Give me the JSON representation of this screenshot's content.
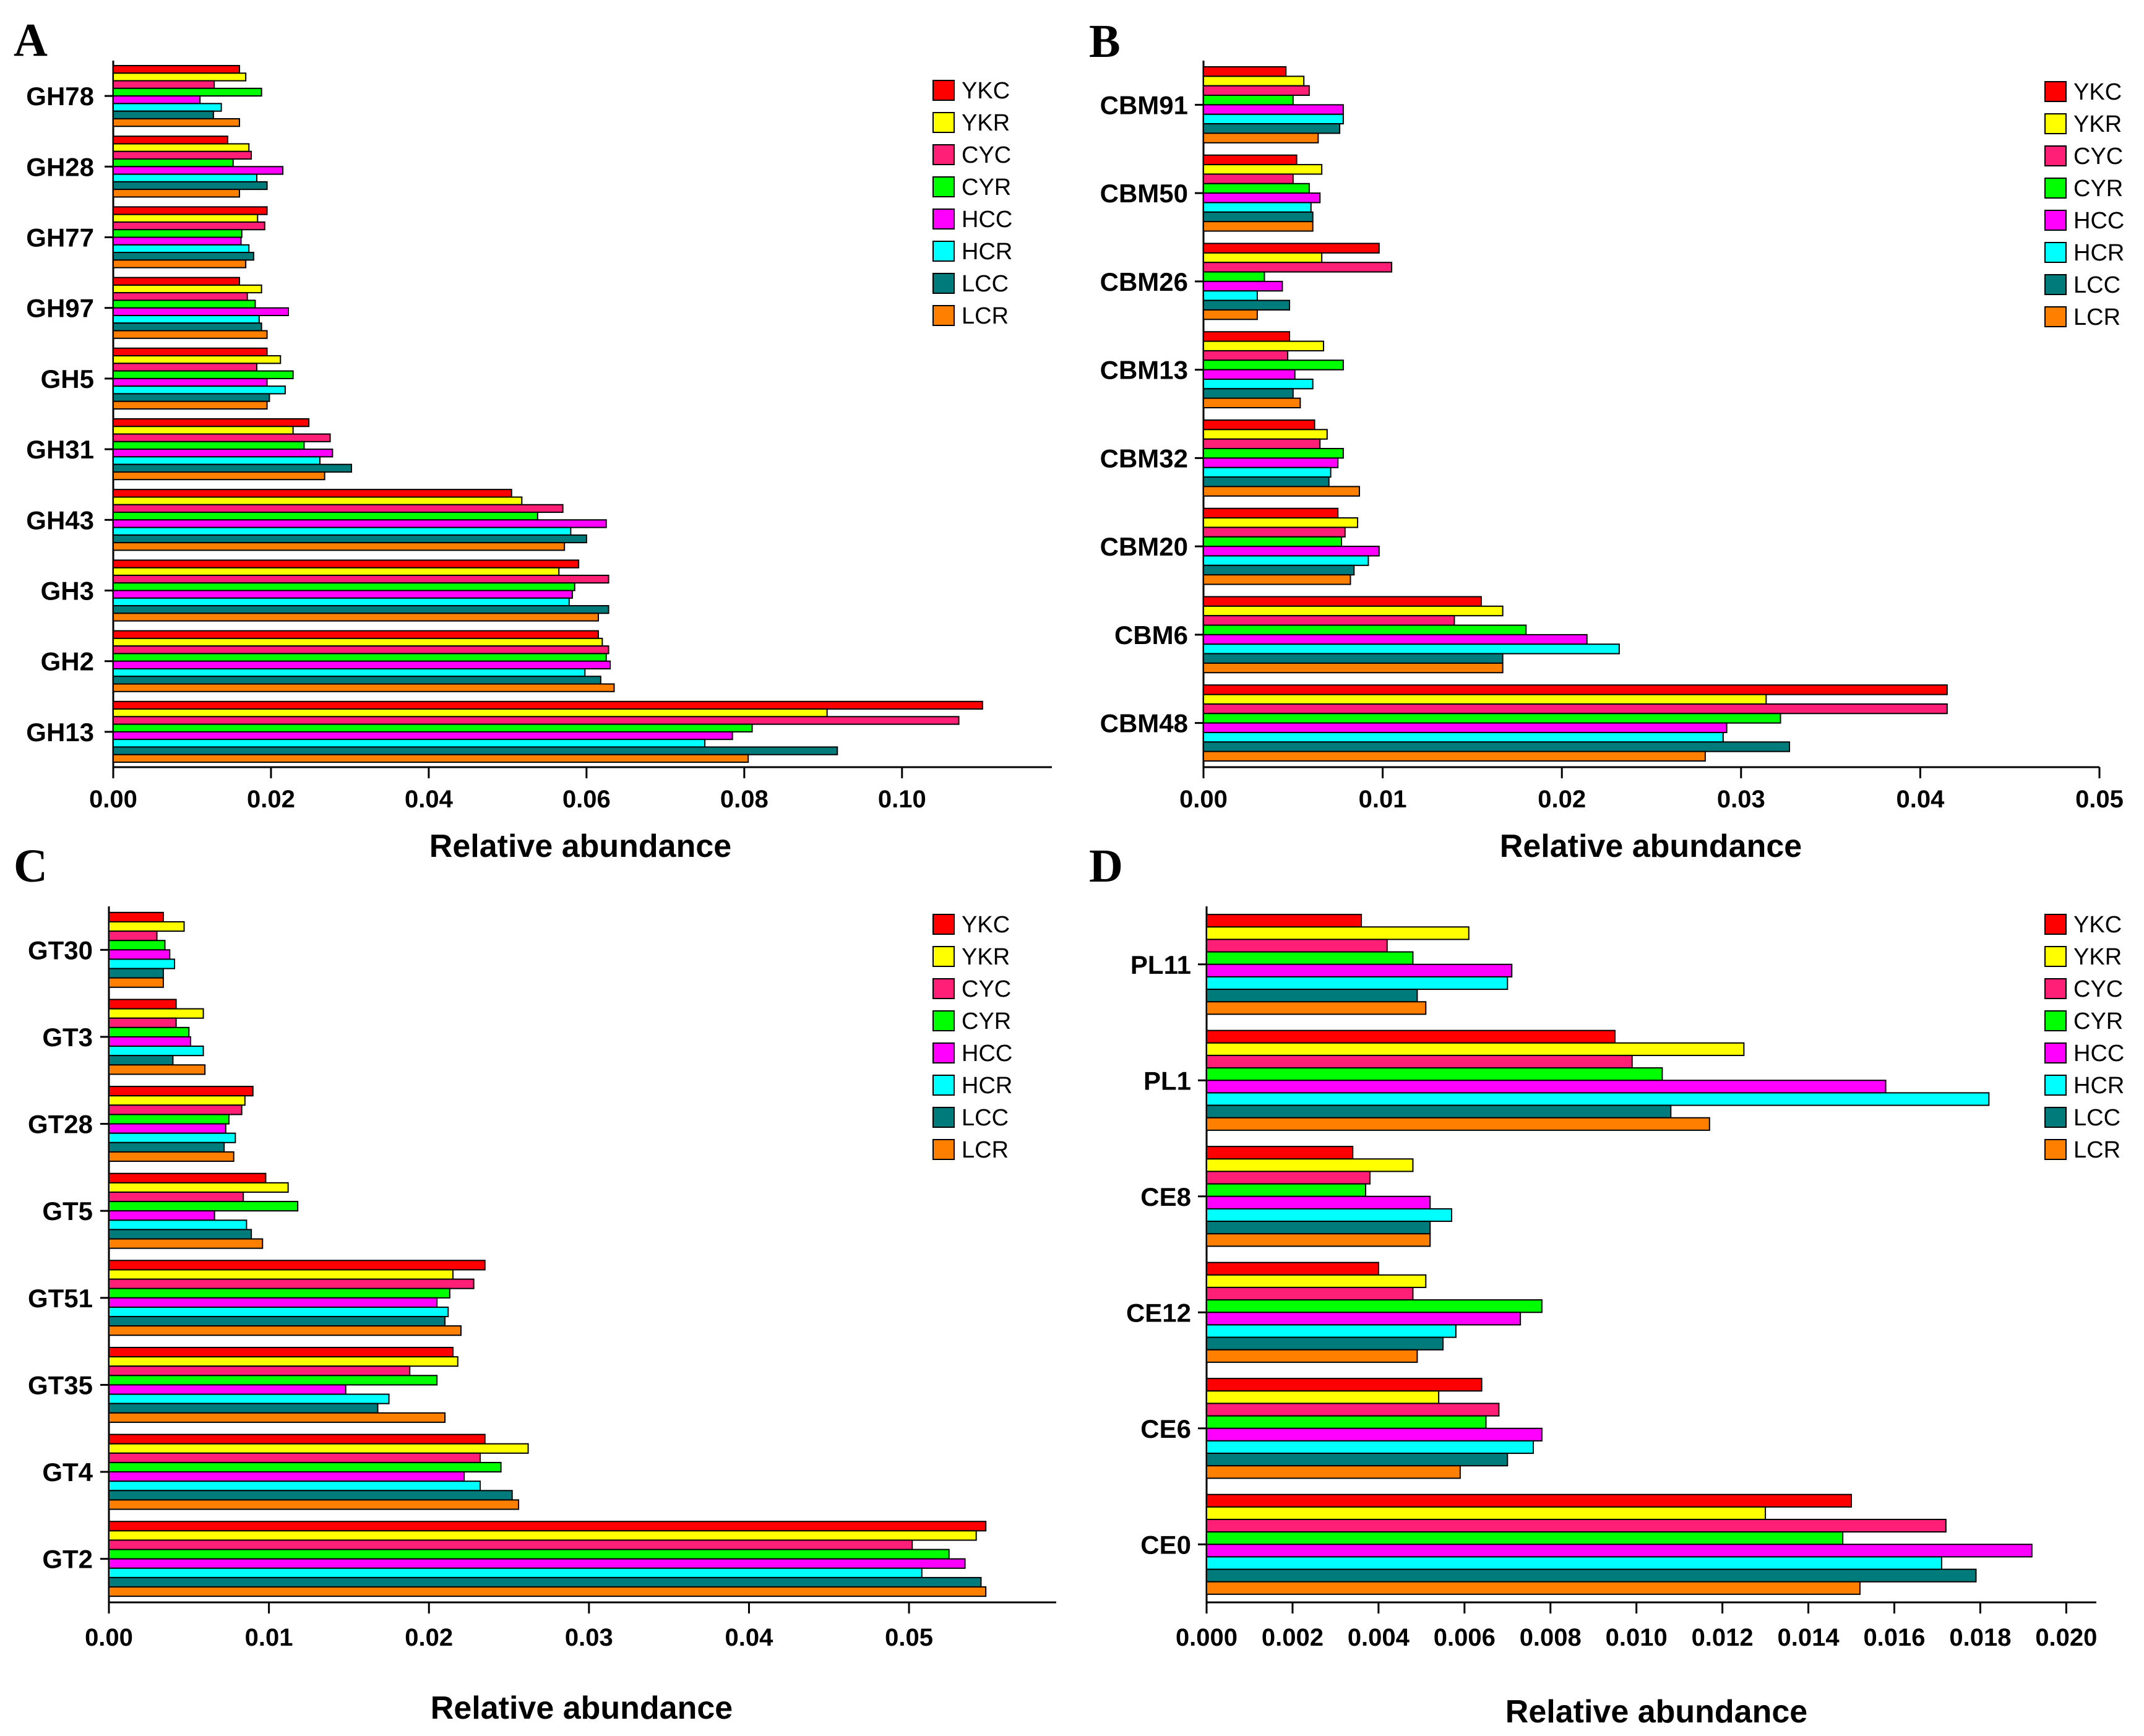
{
  "legend_colors": [
    "#ff0000",
    "#ffff00",
    "#ff1f77",
    "#00ff00",
    "#ff00ff",
    "#00ffff",
    "#007b7b",
    "#ff8000"
  ],
  "chart_data": [
    {
      "panel": "A",
      "type": "bar",
      "orientation": "horizontal",
      "categories": [
        "GH78",
        "GH28",
        "GH77",
        "GH97",
        "GH5",
        "GH31",
        "GH43",
        "GH3",
        "GH2",
        "GH13"
      ],
      "xlabel": "Relative abundance",
      "xlim": [
        0,
        0.119
      ],
      "xticks": [
        0.0,
        0.02,
        0.04,
        0.06,
        0.08,
        0.1
      ],
      "xtick_labels": [
        "0.00",
        "0.02",
        "0.04",
        "0.06",
        "0.08",
        "0.10"
      ],
      "legend_position": "top-right",
      "series": [
        {
          "name": "YKC",
          "values": [
            0.016,
            0.0145,
            0.0195,
            0.016,
            0.0195,
            0.0248,
            0.0505,
            0.059,
            0.0615,
            0.1102
          ]
        },
        {
          "name": "YKR",
          "values": [
            0.0168,
            0.0172,
            0.0183,
            0.0188,
            0.0212,
            0.0228,
            0.0518,
            0.0565,
            0.062,
            0.0905
          ]
        },
        {
          "name": "CYC",
          "values": [
            0.0128,
            0.0175,
            0.0192,
            0.017,
            0.0182,
            0.0275,
            0.057,
            0.0628,
            0.0628,
            0.1072
          ]
        },
        {
          "name": "CYR",
          "values": [
            0.0188,
            0.0152,
            0.0163,
            0.018,
            0.0228,
            0.0242,
            0.0538,
            0.0585,
            0.0625,
            0.081
          ]
        },
        {
          "name": "HCC",
          "values": [
            0.011,
            0.0215,
            0.0162,
            0.0222,
            0.0195,
            0.0278,
            0.0625,
            0.0582,
            0.063,
            0.0785
          ]
        },
        {
          "name": "HCR",
          "values": [
            0.0137,
            0.0182,
            0.0172,
            0.0185,
            0.0218,
            0.0262,
            0.058,
            0.0578,
            0.0598,
            0.075
          ]
        },
        {
          "name": "LCC",
          "values": [
            0.0127,
            0.0195,
            0.0178,
            0.0188,
            0.0198,
            0.0302,
            0.06,
            0.0628,
            0.0618,
            0.0918
          ]
        },
        {
          "name": "LCR",
          "values": [
            0.016,
            0.016,
            0.0168,
            0.0195,
            0.0195,
            0.0268,
            0.0572,
            0.0615,
            0.0635,
            0.0805
          ]
        }
      ]
    },
    {
      "panel": "B",
      "type": "bar",
      "orientation": "horizontal",
      "categories": [
        "CBM91",
        "CBM50",
        "CBM26",
        "CBM13",
        "CBM32",
        "CBM20",
        "CBM6",
        "CBM48"
      ],
      "xlabel": "Relative abundance",
      "xlim": [
        0,
        0.05
      ],
      "xticks": [
        0.0,
        0.01,
        0.02,
        0.03,
        0.04,
        0.05
      ],
      "xtick_labels": [
        "0.00",
        "0.01",
        "0.02",
        "0.03",
        "0.04",
        "0.05"
      ],
      "legend_position": "top-right",
      "series": [
        {
          "name": "YKC",
          "values": [
            0.0046,
            0.0052,
            0.0098,
            0.0048,
            0.0062,
            0.0075,
            0.0155,
            0.0415
          ]
        },
        {
          "name": "YKR",
          "values": [
            0.0056,
            0.0066,
            0.0066,
            0.0067,
            0.0069,
            0.0086,
            0.0167,
            0.0314
          ]
        },
        {
          "name": "CYC",
          "values": [
            0.0059,
            0.005,
            0.0105,
            0.0047,
            0.0065,
            0.0079,
            0.014,
            0.0415
          ]
        },
        {
          "name": "CYR",
          "values": [
            0.005,
            0.0059,
            0.0034,
            0.0078,
            0.0078,
            0.0077,
            0.018,
            0.0322
          ]
        },
        {
          "name": "HCC",
          "values": [
            0.0078,
            0.0065,
            0.0044,
            0.0051,
            0.0075,
            0.0098,
            0.0214,
            0.0292
          ]
        },
        {
          "name": "HCR",
          "values": [
            0.0078,
            0.006,
            0.003,
            0.0061,
            0.0071,
            0.0092,
            0.0232,
            0.029
          ]
        },
        {
          "name": "LCC",
          "values": [
            0.0076,
            0.0061,
            0.0048,
            0.005,
            0.007,
            0.0084,
            0.0167,
            0.0327
          ]
        },
        {
          "name": "LCR",
          "values": [
            0.0064,
            0.0061,
            0.003,
            0.0054,
            0.0087,
            0.0082,
            0.0167,
            0.028
          ]
        }
      ]
    },
    {
      "panel": "C",
      "type": "bar",
      "orientation": "horizontal",
      "categories": [
        "GT30",
        "GT3",
        "GT28",
        "GT5",
        "GT51",
        "GT35",
        "GT4",
        "GT2"
      ],
      "xlabel": "Relative abundance",
      "xlim": [
        0,
        0.0592
      ],
      "xticks": [
        0.0,
        0.01,
        0.02,
        0.03,
        0.04,
        0.05
      ],
      "xtick_labels": [
        "0.00",
        "0.01",
        "0.02",
        "0.03",
        "0.04",
        "0.05"
      ],
      "legend_position": "top-right",
      "series": [
        {
          "name": "YKC",
          "values": [
            0.0034,
            0.0042,
            0.009,
            0.0098,
            0.0235,
            0.0215,
            0.0235,
            0.0548
          ]
        },
        {
          "name": "YKR",
          "values": [
            0.0047,
            0.0059,
            0.0085,
            0.0112,
            0.0215,
            0.0218,
            0.0262,
            0.0542
          ]
        },
        {
          "name": "CYC",
          "values": [
            0.003,
            0.0042,
            0.0083,
            0.0084,
            0.0228,
            0.0188,
            0.0232,
            0.0502
          ]
        },
        {
          "name": "CYR",
          "values": [
            0.0035,
            0.005,
            0.0075,
            0.0118,
            0.0213,
            0.0205,
            0.0245,
            0.0525
          ]
        },
        {
          "name": "HCC",
          "values": [
            0.0038,
            0.0051,
            0.0073,
            0.0066,
            0.0205,
            0.0148,
            0.0222,
            0.0535
          ]
        },
        {
          "name": "HCR",
          "values": [
            0.0041,
            0.0059,
            0.0079,
            0.0086,
            0.0212,
            0.0175,
            0.0232,
            0.0508
          ]
        },
        {
          "name": "LCC",
          "values": [
            0.0034,
            0.004,
            0.0072,
            0.0089,
            0.021,
            0.0168,
            0.0252,
            0.0545
          ]
        },
        {
          "name": "LCR",
          "values": [
            0.0034,
            0.006,
            0.0078,
            0.0096,
            0.022,
            0.021,
            0.0256,
            0.0548
          ]
        }
      ]
    },
    {
      "panel": "D",
      "type": "bar",
      "orientation": "horizontal",
      "categories": [
        "PL11",
        "PL1",
        "CE8",
        "CE12",
        "CE6",
        "CE0"
      ],
      "xlabel": "Relative abundance",
      "xlim": [
        0,
        0.0207
      ],
      "xticks": [
        0.0,
        0.002,
        0.004,
        0.006,
        0.008,
        0.01,
        0.012,
        0.014,
        0.016,
        0.018,
        0.02
      ],
      "xtick_labels": [
        "0.000",
        "0.002",
        "0.004",
        "0.006",
        "0.008",
        "0.010",
        "0.012",
        "0.014",
        "0.016",
        "0.018",
        "0.020"
      ],
      "legend_position": "top-right",
      "series": [
        {
          "name": "YKC",
          "values": [
            0.0036,
            0.0095,
            0.0034,
            0.004,
            0.0064,
            0.015
          ]
        },
        {
          "name": "YKR",
          "values": [
            0.0061,
            0.0125,
            0.0048,
            0.0051,
            0.0054,
            0.013
          ]
        },
        {
          "name": "CYC",
          "values": [
            0.0042,
            0.0099,
            0.0038,
            0.0048,
            0.0068,
            0.0172
          ]
        },
        {
          "name": "CYR",
          "values": [
            0.0048,
            0.0106,
            0.0037,
            0.0078,
            0.0065,
            0.0148
          ]
        },
        {
          "name": "HCC",
          "values": [
            0.0071,
            0.0158,
            0.0052,
            0.0073,
            0.0078,
            0.0192
          ]
        },
        {
          "name": "HCR",
          "values": [
            0.007,
            0.0182,
            0.0057,
            0.0058,
            0.0076,
            0.0171
          ]
        },
        {
          "name": "LCC",
          "values": [
            0.0049,
            0.0108,
            0.0052,
            0.0055,
            0.007,
            0.0179
          ]
        },
        {
          "name": "LCR",
          "values": [
            0.0051,
            0.0117,
            0.0052,
            0.0049,
            0.0059,
            0.0152
          ]
        }
      ]
    }
  ]
}
